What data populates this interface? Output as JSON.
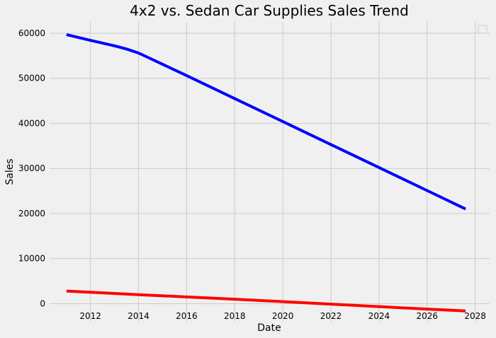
{
  "chart_data": {
    "type": "line",
    "title": "4x2 vs. Sedan Car Supplies Sales Trend",
    "xlabel": "Date",
    "ylabel": "Sales",
    "xlim": [
      2010.3,
      2028.6
    ],
    "ylim": [
      -4000,
      62500
    ],
    "x_ticks": [
      2012,
      2014,
      2016,
      2018,
      2020,
      2022,
      2024,
      2026,
      2028
    ],
    "y_ticks": [
      0,
      10000,
      20000,
      30000,
      40000,
      50000,
      60000
    ],
    "grid": true,
    "legend": "top-right",
    "series": [
      {
        "color": "#0000ff",
        "x": [
          2011.0,
          2012.0,
          2013.0,
          2013.5,
          2014.0,
          2015.0,
          2016.0,
          2018.0,
          2020.0,
          2022.0,
          2024.0,
          2026.0,
          2027.6
        ],
        "y": [
          59700,
          58400,
          57200,
          56500,
          55600,
          53100,
          50600,
          45500,
          40400,
          35300,
          30200,
          25100,
          21000
        ]
      },
      {
        "color": "#ff0000",
        "x": [
          2011.0,
          2014.0,
          2018.0,
          2022.0,
          2026.0,
          2027.6
        ],
        "y": [
          2800,
          2000,
          1000,
          -100,
          -1200,
          -1600
        ]
      }
    ]
  }
}
